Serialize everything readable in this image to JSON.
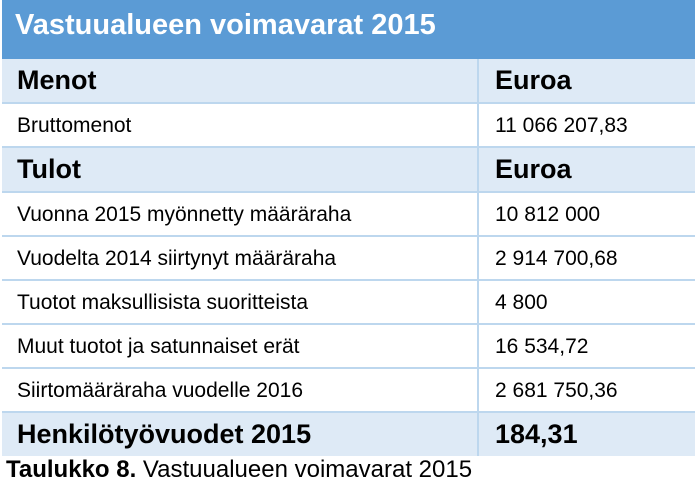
{
  "table": {
    "title": "Vastuualueen voimavarat 2015",
    "header_expenses": [
      "Menot",
      "Euroa"
    ],
    "expense_rows": [
      [
        "Bruttomenot",
        "11 066 207,83"
      ]
    ],
    "header_income": [
      "Tulot",
      "Euroa"
    ],
    "income_rows": [
      [
        "Vuonna 2015 myönnetty määräraha",
        "10 812 000"
      ],
      [
        "Vuodelta 2014 siirtynyt määräraha",
        "2 914 700,68"
      ],
      [
        "Tuotot maksullisista suoritteista",
        "4 800"
      ],
      [
        "Muut tuotot ja satunnaiset erät",
        "16 534,72"
      ],
      [
        "Siirtomääräraha vuodelle 2016",
        "2 681 750,36"
      ]
    ],
    "total": [
      "Henkilötyövuodet 2015",
      "184,31"
    ],
    "colors": {
      "title_bg": "#5b9bd5",
      "header_bg": "#deeaf6",
      "border": "#bdd7ee"
    }
  },
  "caption": {
    "label": "Taulukko 8.",
    "text": " Vastuualueen voimavarat 2015"
  }
}
